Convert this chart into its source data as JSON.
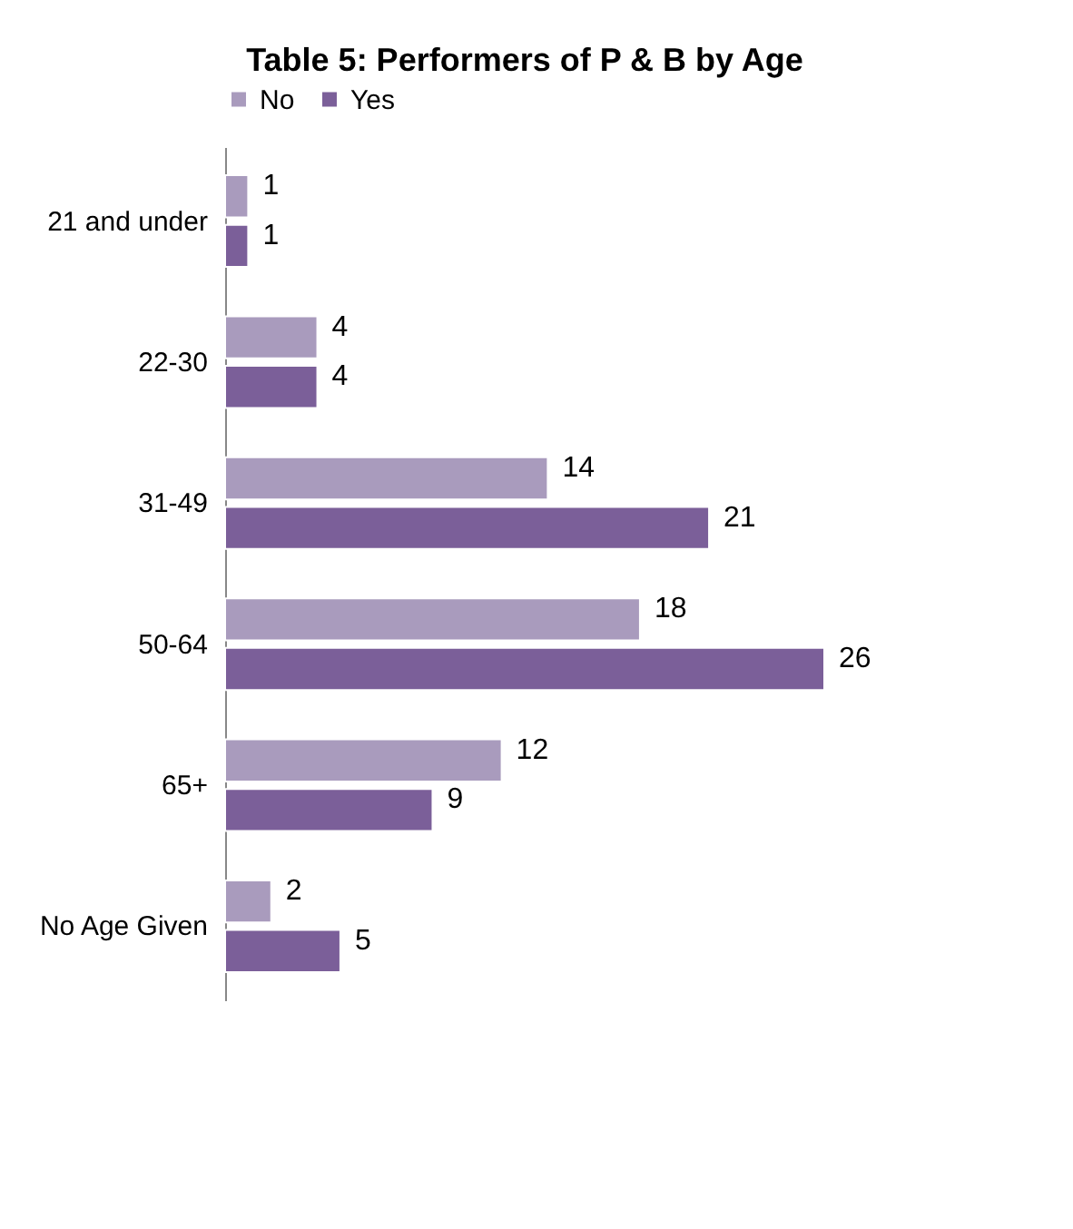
{
  "chart_data": {
    "type": "bar",
    "orientation": "horizontal",
    "title": "Table 5: Performers of P & B by Age",
    "categories": [
      "21 and under",
      "22-30",
      "31-49",
      "50-64",
      "65+",
      "No Age Given"
    ],
    "series": [
      {
        "name": "No",
        "color": "#a99bbd",
        "values": [
          1,
          4,
          14,
          18,
          12,
          2
        ]
      },
      {
        "name": "Yes",
        "color": "#7b5f99",
        "values": [
          1,
          4,
          21,
          26,
          9,
          5
        ]
      }
    ],
    "data_labels": true,
    "legend": "top",
    "grid": false,
    "tick_labels": "y"
  }
}
